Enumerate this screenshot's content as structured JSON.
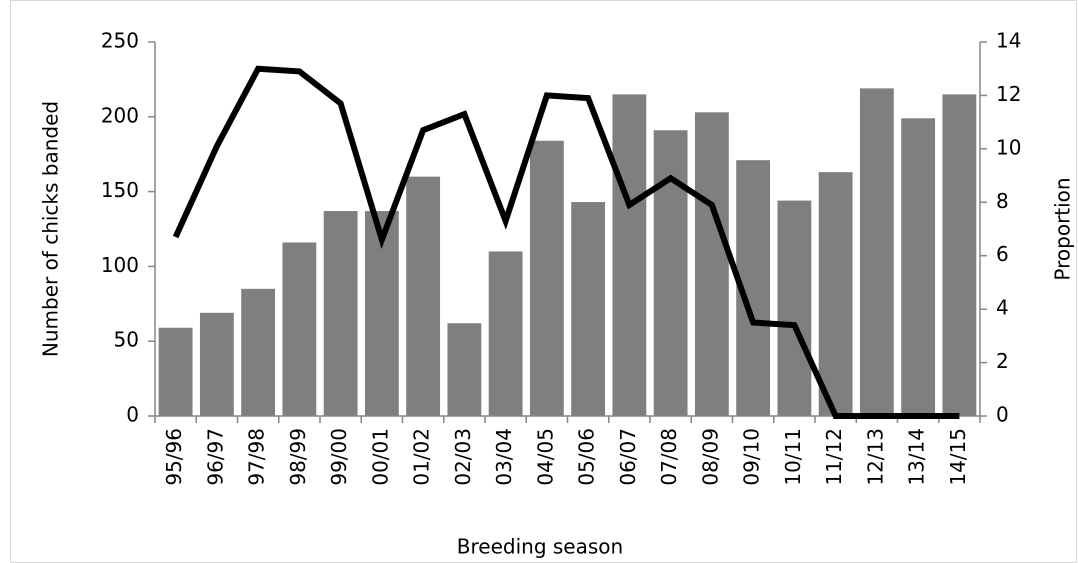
{
  "chart_data": {
    "type": "bar",
    "x_label": "Breeding season",
    "y_label": "Number of chicks banded",
    "y2_label": "Proportion",
    "categories": [
      "95/96",
      "96/97",
      "97/98",
      "98/99",
      "99/00",
      "00/01",
      "01/02",
      "02/03",
      "03/04",
      "04/05",
      "05/06",
      "06/07",
      "07/08",
      "08/09",
      "09/10",
      "10/11",
      "11/12",
      "12/13",
      "13/14",
      "14/15"
    ],
    "series": [
      {
        "type": "bar",
        "color": "#7f7f7f",
        "values": [
          59,
          69,
          85,
          116,
          137,
          137,
          160,
          62,
          110,
          184,
          143,
          215,
          191,
          203,
          171,
          144,
          163,
          219,
          199,
          215
        ]
      },
      {
        "type": "line",
        "axis": "y2",
        "color": "#000000",
        "values": [
          6.7,
          10.1,
          13.0,
          12.9,
          11.7,
          6.6,
          10.7,
          11.3,
          7.3,
          12.0,
          11.9,
          7.9,
          8.9,
          7.9,
          3.5,
          3.4,
          0,
          0,
          0,
          0
        ]
      }
    ],
    "ylim": [
      0,
      250
    ],
    "yticks": [
      0,
      50,
      100,
      150,
      200,
      250
    ],
    "y2lim": [
      0,
      14
    ],
    "y2ticks": [
      0,
      2,
      4,
      6,
      8,
      10,
      12,
      14
    ]
  }
}
